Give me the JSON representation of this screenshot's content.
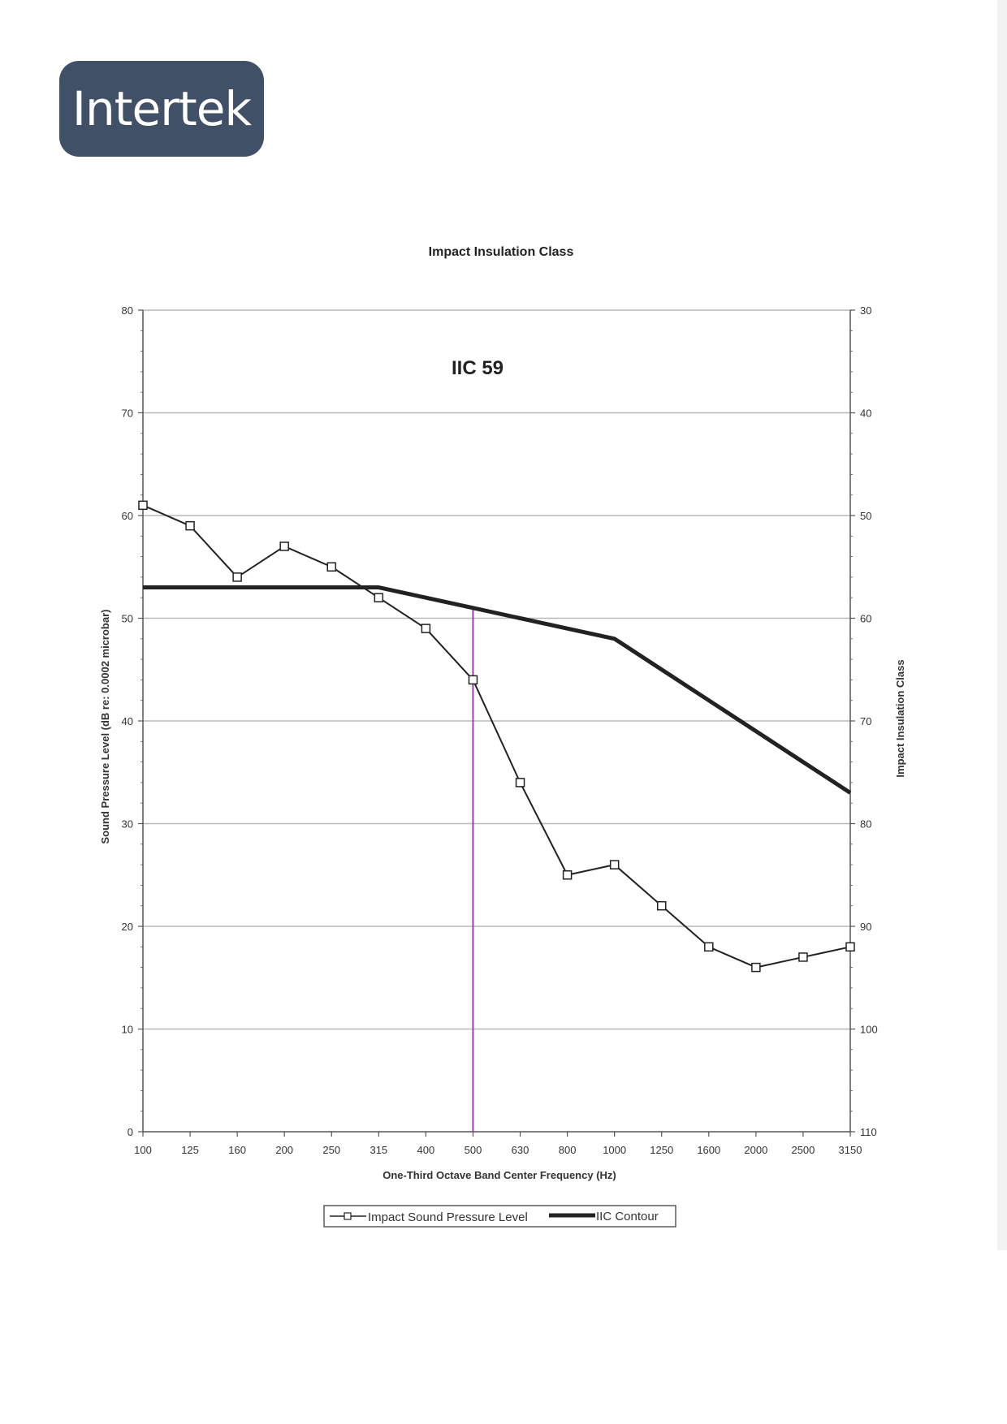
{
  "logo": {
    "text": "Intertek"
  },
  "chart_data": {
    "type": "line",
    "title": "Impact Insulation Class",
    "annotation": "IIC 59",
    "xlabel": "One-Third Octave Band Center Frequency (Hz)",
    "ylabel": "Sound Pressure Level (dB re: 0.0002 microbar)",
    "y2label": "Impact Insulation Class",
    "categories": [
      "100",
      "125",
      "160",
      "200",
      "250",
      "315",
      "400",
      "500",
      "630",
      "800",
      "1000",
      "1250",
      "1600",
      "2000",
      "2500",
      "3150"
    ],
    "ylim": [
      0,
      80
    ],
    "yticks": [
      0,
      10,
      20,
      30,
      40,
      50,
      60,
      70,
      80
    ],
    "y2lim": [
      110,
      30
    ],
    "y2ticks": [
      30,
      40,
      50,
      60,
      70,
      80,
      90,
      100,
      110
    ],
    "grid": true,
    "legend_position": "bottom",
    "marker_frequency": "500",
    "series": [
      {
        "name": "Impact Sound Pressure Level",
        "values": [
          61,
          59,
          54,
          57,
          55,
          52,
          49,
          44,
          34,
          25,
          26,
          22,
          18,
          16,
          17,
          18
        ],
        "color": "#222222",
        "marker": "square"
      },
      {
        "name": "IIC Contour",
        "values": [
          53,
          53,
          53,
          53,
          53,
          53,
          52,
          51,
          50,
          49,
          48,
          45,
          42,
          39,
          36,
          33
        ],
        "color": "#222222",
        "marker": "none"
      }
    ],
    "colors": {
      "grid": "#b8b8b8",
      "marker_line": "#9b3fb5",
      "axis": "#555555"
    }
  }
}
